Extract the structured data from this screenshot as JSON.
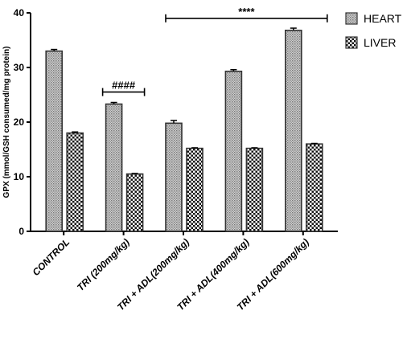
{
  "chart_data": {
    "type": "bar",
    "title": "",
    "xlabel": "",
    "ylabel": "GPX (mmol/GSH consumed/mg protein)",
    "ylim": [
      0,
      40
    ],
    "yticks": [
      "0",
      "10",
      "20",
      "30",
      "40"
    ],
    "categories": [
      "CONTROL",
      "TRI (200mg/kg)",
      "TRI + ADL(200mg/kg)",
      "TRI + ADL(400mg/kg)",
      "TRI + ADL(600mg/kg)"
    ],
    "series": [
      {
        "name": "HEART",
        "values": [
          33,
          23.3,
          19.8,
          29.3,
          36.8
        ],
        "errors": [
          0.3,
          0.3,
          0.5,
          0.3,
          0.4
        ],
        "pattern": "dots"
      },
      {
        "name": "LIVER",
        "values": [
          18,
          10.5,
          15.2,
          15.2,
          16.0
        ],
        "errors": [
          0.2,
          0.1,
          0.1,
          0.1,
          0.1
        ],
        "pattern": "checker"
      }
    ],
    "annotations": [
      {
        "text": "####",
        "from": 1,
        "to": 1,
        "y": 25.5
      },
      {
        "text": "****",
        "from": 2,
        "to": 4,
        "y": 39
      }
    ],
    "legend_position": "top-right",
    "grid": false
  }
}
